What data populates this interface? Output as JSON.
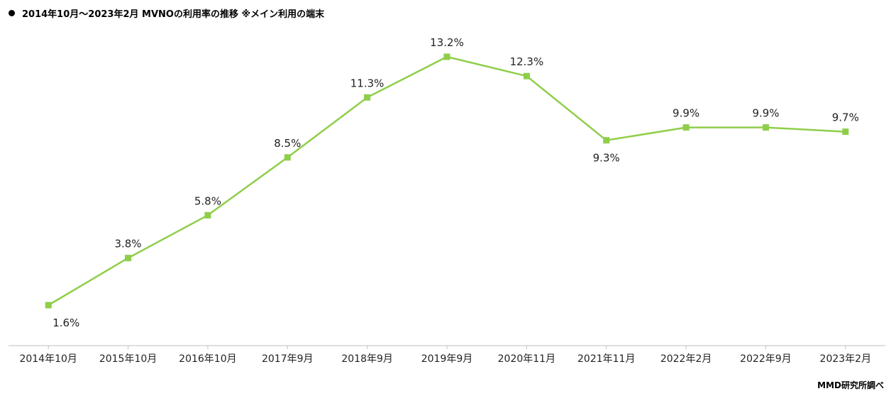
{
  "header": {
    "title": "2014年10月～2023年2月  MVNOの利用率の推移 ※メイン利用の端末"
  },
  "footer": {
    "source": "MMD研究所調べ"
  },
  "colors": {
    "line": "#8fce4a",
    "marker": "#8fce4a",
    "axis": "#bfbfbf"
  },
  "chart_data": {
    "type": "line",
    "title": "2014年10月～2023年2月  MVNOの利用率の推移 ※メイン利用の端末",
    "xlabel": "",
    "ylabel": "",
    "ylim": [
      0,
      15
    ],
    "grid": false,
    "categories": [
      "2014年10月",
      "2015年10月",
      "2016年10月",
      "2017年9月",
      "2018年9月",
      "2019年9月",
      "2020年11月",
      "2021年11月",
      "2022年2月",
      "2022年9月",
      "2023年2月"
    ],
    "series": [
      {
        "name": "MVNO利用率",
        "values": [
          1.6,
          3.8,
          5.8,
          8.5,
          11.3,
          13.2,
          12.3,
          9.3,
          9.9,
          9.9,
          9.7
        ],
        "labels": [
          "1.6%",
          "3.8%",
          "5.8%",
          "8.5%",
          "11.3%",
          "13.2%",
          "12.3%",
          "9.3%",
          "9.9%",
          "9.9%",
          "9.7%"
        ],
        "label_positions": [
          "below",
          "above",
          "above",
          "above",
          "above",
          "above",
          "above",
          "below",
          "above",
          "above",
          "above"
        ]
      }
    ]
  }
}
